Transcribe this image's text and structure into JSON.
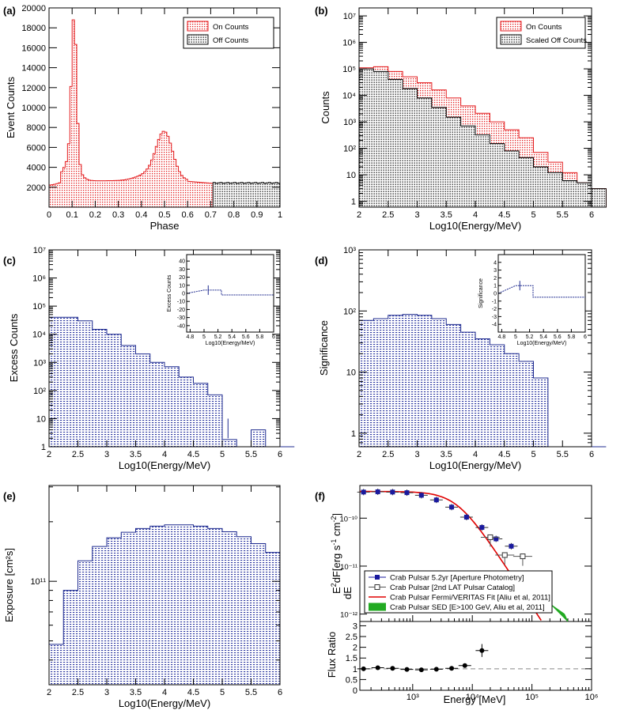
{
  "colors": {
    "on": "#e41a1c",
    "off": "#000000",
    "excess": "#1f2b8f",
    "fit": "#e00000",
    "sed": "#22aa22",
    "ref": "#888888"
  },
  "charts": [
    {
      "label": "(a)",
      "type": "bar",
      "xlabel": "Phase",
      "ylabel": "Event Counts",
      "xlim": [
        0,
        1
      ],
      "ylim": [
        0,
        20000
      ],
      "xticks": [
        "0",
        "0.1",
        "0.2",
        "0.3",
        "0.4",
        "0.5",
        "0.6",
        "0.7",
        "0.8",
        "0.9",
        "1"
      ],
      "yticks": [
        "2000",
        "4000",
        "6000",
        "8000",
        "10000",
        "12000",
        "14000",
        "16000",
        "18000",
        "20000"
      ],
      "legend": [
        "On Counts",
        "Off Counts"
      ],
      "on_region": [
        0.0,
        0.71
      ],
      "off_region": [
        0.71,
        1.0
      ]
    },
    {
      "label": "(b)",
      "type": "bar",
      "xlabel": "Log10(Energy/MeV)",
      "ylabel": "Counts",
      "xlim": [
        2,
        6
      ],
      "ylim": [
        0.6,
        20000000
      ],
      "log_y": true,
      "xticks": [
        "2",
        "2.5",
        "3",
        "3.5",
        "4",
        "4.5",
        "5",
        "5.5",
        "6"
      ],
      "yticks": [
        "1",
        "10",
        "10²",
        "10³",
        "10⁴",
        "10⁵",
        "10⁶",
        "10⁷"
      ],
      "legend": [
        "On Counts",
        "Scaled Off Counts"
      ]
    },
    {
      "label": "(c)",
      "type": "bar",
      "xlabel": "Log10(Energy/MeV)",
      "ylabel": "Excess Counts",
      "xlim": [
        2,
        6
      ],
      "ylim": [
        1,
        10000000
      ],
      "log_y": true,
      "xticks": [
        "2",
        "2.5",
        "3",
        "3.5",
        "4",
        "4.5",
        "5",
        "5.5",
        "6"
      ],
      "yticks": [
        "1",
        "10",
        "10²",
        "10³",
        "10⁴",
        "10⁵",
        "10⁶",
        "10⁷"
      ],
      "inset": {
        "xlabel": "Log10(Energy/MeV)",
        "ylabel": "Excess Counts",
        "xlim": [
          4.75,
          6
        ],
        "ylim": [
          -48,
          48
        ],
        "xticks": [
          "4.8",
          "5",
          "5.2",
          "5.4",
          "5.6",
          "5.8",
          "6"
        ],
        "yticks": [
          "-40",
          "-30",
          "-20",
          "-10",
          "0",
          "10",
          "20",
          "30",
          "40"
        ]
      }
    },
    {
      "label": "(d)",
      "type": "bar",
      "xlabel": "Log10(Energy/MeV)",
      "ylabel": "Significance",
      "xlim": [
        2,
        6
      ],
      "ylim": [
        0.6,
        1000
      ],
      "log_y": true,
      "xticks": [
        "2",
        "2.5",
        "3",
        "3.5",
        "4",
        "4.5",
        "5",
        "5.5",
        "6"
      ],
      "yticks": [
        "1",
        "10",
        "10²",
        "10³"
      ],
      "inset": {
        "xlabel": "Log10(Energy/MeV)",
        "ylabel": "Significance",
        "xlim": [
          4.75,
          6
        ],
        "ylim": [
          -5,
          5
        ],
        "xticks": [
          "4.8",
          "5",
          "5.2",
          "5.4",
          "5.6",
          "5.8",
          "6"
        ],
        "yticks": [
          "-4",
          "-3",
          "-2",
          "-1",
          "0",
          "1",
          "2",
          "3",
          "4"
        ]
      }
    },
    {
      "label": "(e)",
      "type": "bar",
      "xlabel": "Log10(Energy/MeV)",
      "ylabel": "Exposure [cm²s]",
      "xlim": [
        2,
        6
      ],
      "ylim": [
        30000000000.0,
        305000000000.0
      ],
      "log_y": true,
      "xticks": [
        "2",
        "2.5",
        "3",
        "3.5",
        "4",
        "4.5",
        "5",
        "5.5",
        "6"
      ],
      "yticks": [
        "10¹¹"
      ]
    },
    {
      "label": "(f)",
      "type": "scatter",
      "xlabel": "Energy [MeV]",
      "xticks": [
        "10³",
        "10⁴",
        "10⁵",
        "10⁶"
      ],
      "top": {
        "ylabel_tex": {
          "e": "E",
          "sup": "2",
          "frac_num": "dF",
          "frac_den": "dE",
          "units": "[erg s",
          "u1": "-1",
          "cm": " cm",
          "u2": "-2",
          "close": "]"
        },
        "yticks": [
          "10⁻¹⁰",
          "10⁻¹¹",
          "10⁻¹²"
        ],
        "log_x": true,
        "log_y": true,
        "legend": [
          "Crab Pulsar 5.2yr [Aperture Photometry]",
          "Crab Pulsar [2nd LAT Pulsar Catalog]",
          "Crab Pulsar Fermi/VERITAS Fit [Aliu et al, 2011]",
          "Crab Pulsar SED [E>100 GeV, Aliu et al, 2011]"
        ]
      },
      "bottom": {
        "ylabel": "Flux Ratio",
        "ylim": [
          0,
          3.2
        ],
        "yticks": [
          "0",
          "0.5",
          "1",
          "1.5",
          "2",
          "2.5",
          "3"
        ],
        "ratio": [
          1.0,
          1.05,
          1.02,
          0.97,
          0.95,
          0.98,
          1.02,
          1.15,
          1.85
        ]
      }
    }
  ]
}
